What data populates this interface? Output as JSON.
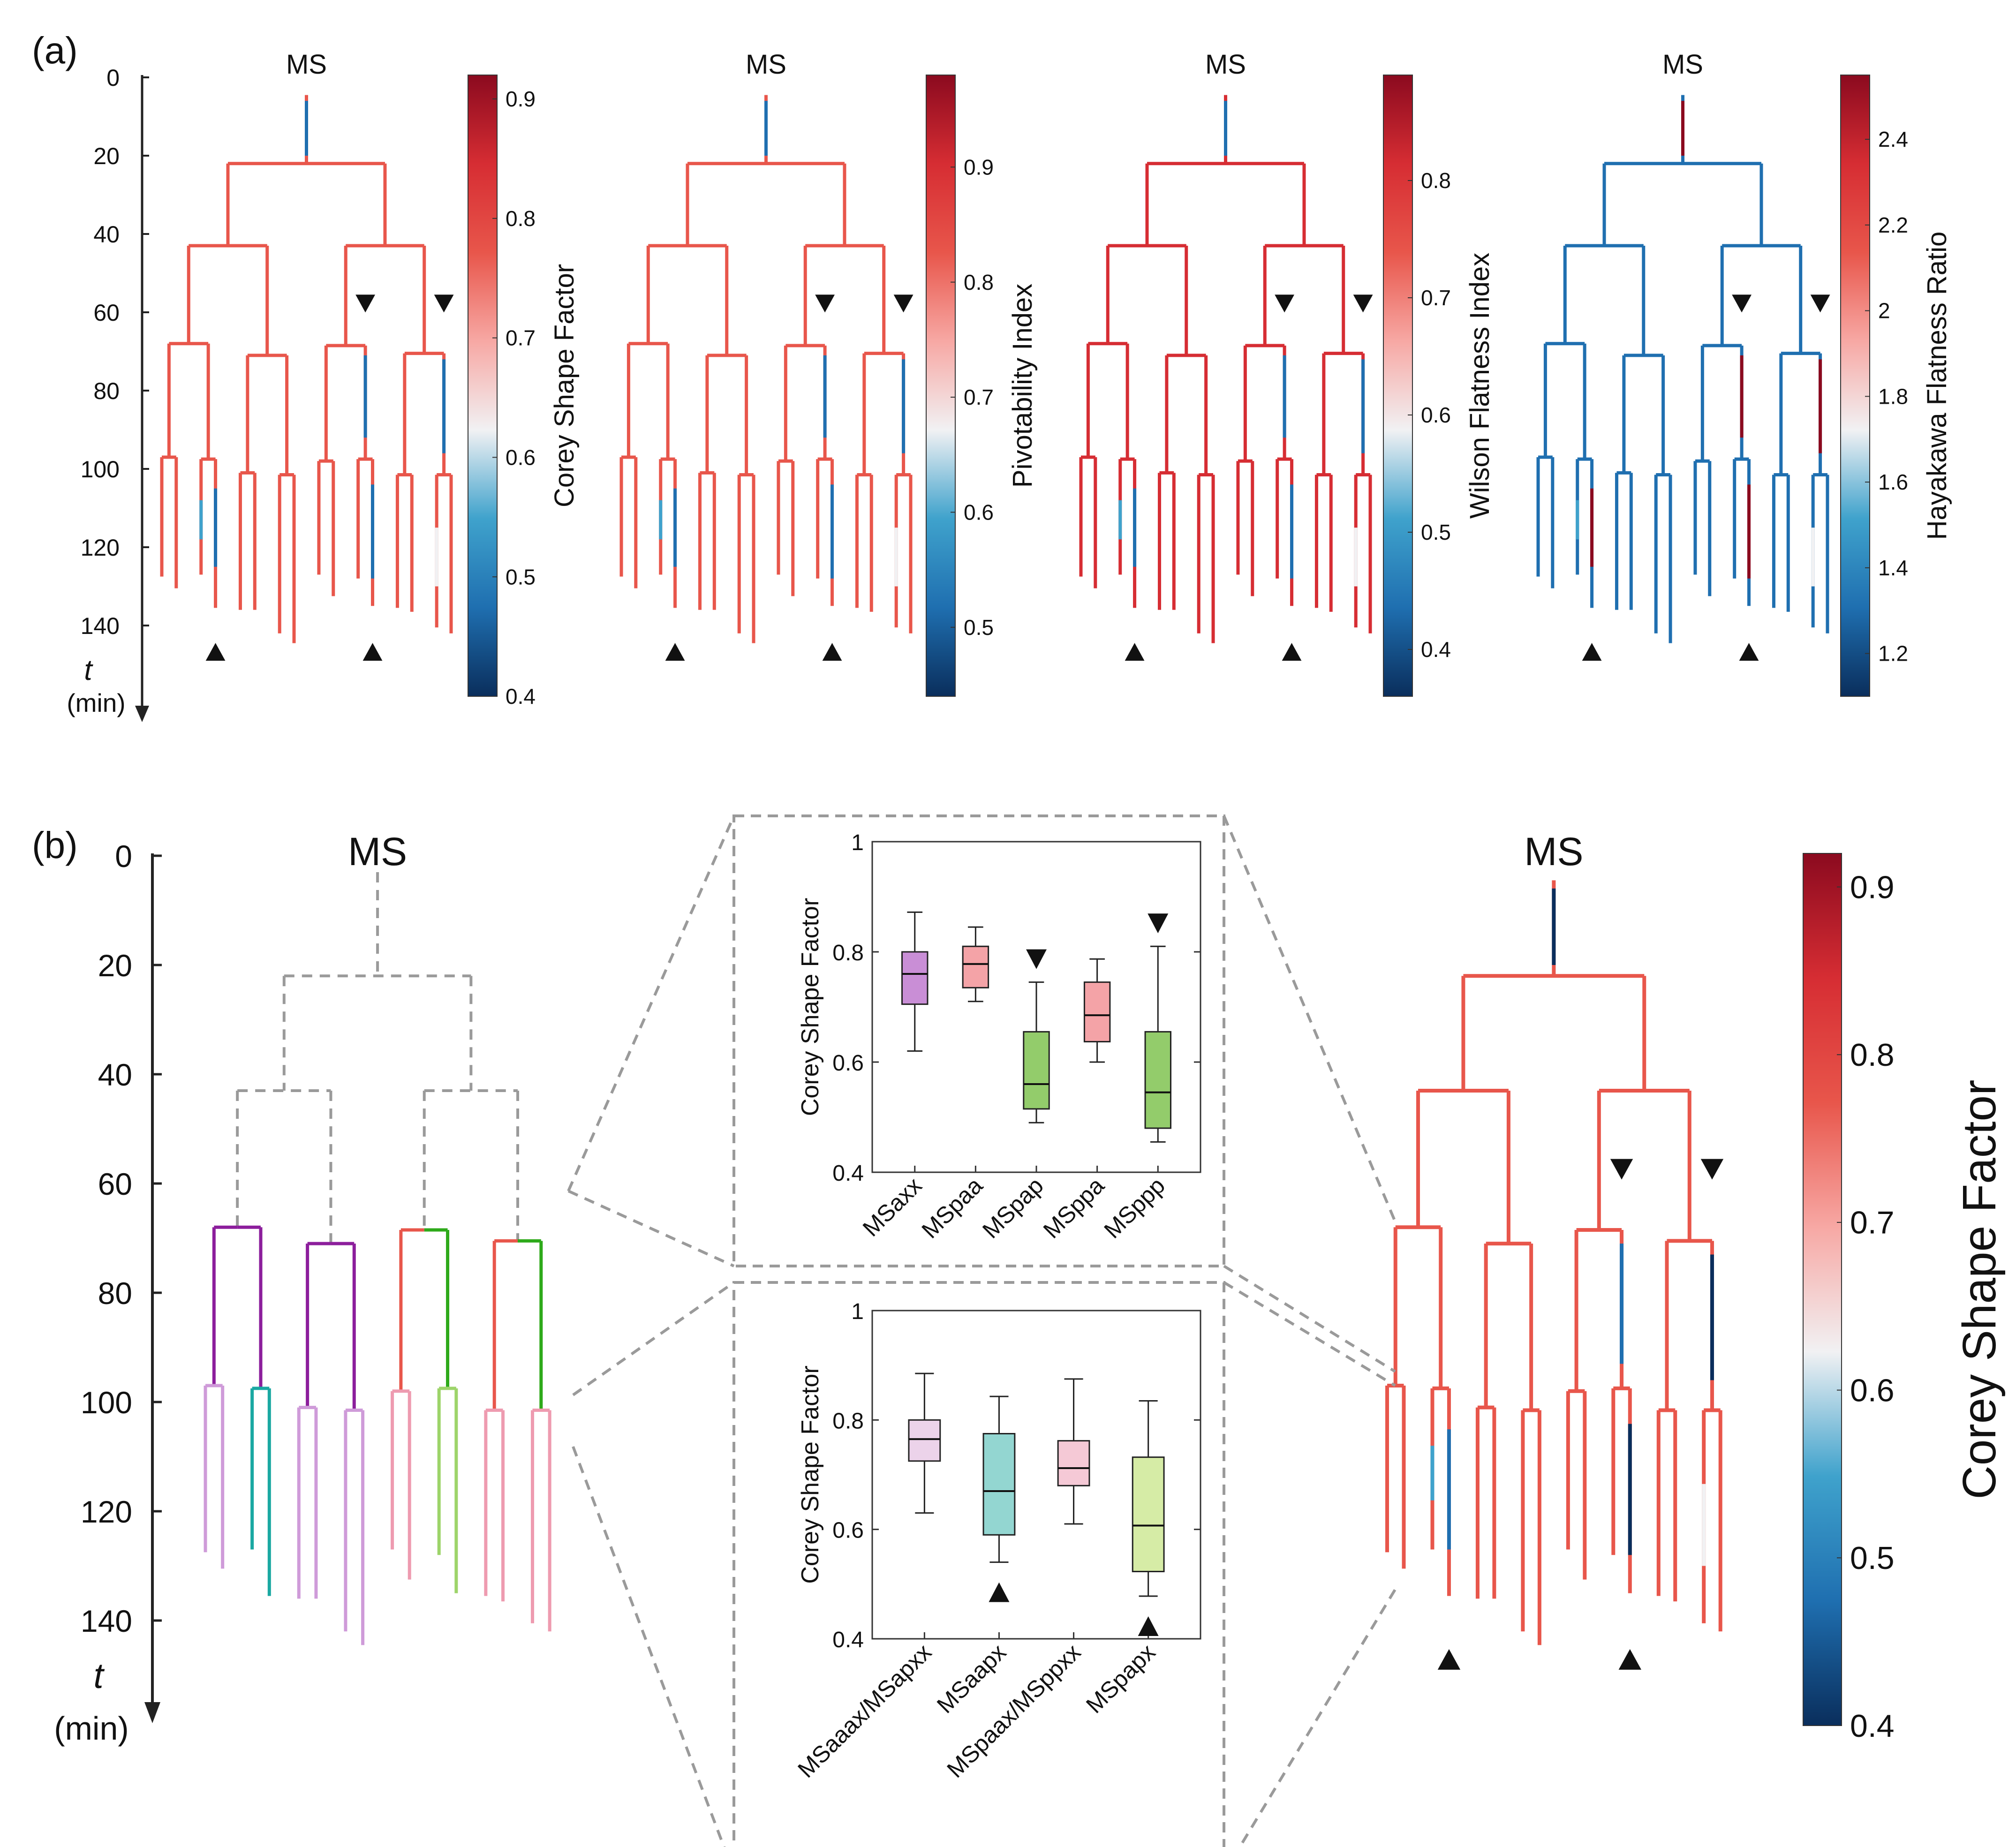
{
  "figure": {
    "panel_a_label": "(a)",
    "panel_b_label": "(b)",
    "lineage_root": "MS",
    "time_axis_symbol": "t",
    "time_axis_unit": "(min)",
    "time_ticks": [
      0,
      20,
      40,
      60,
      80,
      100,
      120,
      140
    ]
  },
  "colors": {
    "colormap": [
      "#0a2e5c",
      "#1f6fb0",
      "#3fa2cc",
      "#f1f1f3",
      "#f7a8a4",
      "#e8564b",
      "#d62d33",
      "#8b0a1f"
    ],
    "arrow": "#111111",
    "dashed": "#9a9a9a",
    "group_axx": "#8c1e9c",
    "group_axx_light": "#cf9bd9",
    "group_apx": "#1aa8a2",
    "group_paa": "#e8564b",
    "group_pap": "#2eaa1a",
    "group_pap_light": "#9dd46a",
    "group_pxx_light": "#ee9bb0",
    "box_axx": "#c98ed6",
    "box_paa": "#f4a3a7",
    "box_pap": "#93cc6b",
    "box_ppa": "#f4a3a7",
    "box_ppp": "#93cc6b",
    "box_aaax": "#ecd3ea",
    "box_aapx": "#93d6d1",
    "box_paax": "#f5c9d6",
    "box_papx": "#d6eca6"
  },
  "colorbars": [
    {
      "label": "Corey Shape Factor",
      "ticks": [
        0.4,
        0.5,
        0.6,
        0.7,
        0.8,
        0.9
      ],
      "range": [
        0.4,
        0.92
      ]
    },
    {
      "label": "Pivotability Index",
      "ticks": [
        0.5,
        0.6,
        0.7,
        0.8,
        0.9
      ],
      "range": [
        0.44,
        0.98
      ]
    },
    {
      "label": "Wilson Flatness Index",
      "ticks": [
        0.4,
        0.5,
        0.6,
        0.7,
        0.8
      ],
      "range": [
        0.36,
        0.89
      ]
    },
    {
      "label": "Hayakawa Flatness Ratio",
      "ticks": [
        1.2,
        1.4,
        1.6,
        1.8,
        2,
        2.2,
        2.4
      ],
      "range": [
        1.1,
        2.55
      ]
    }
  ],
  "colorbar_b": {
    "label": "Corey Shape Factor",
    "ticks": [
      0.4,
      0.5,
      0.6,
      0.7,
      0.8,
      0.9
    ],
    "range": [
      0.4,
      0.92
    ]
  },
  "tree": {
    "root_end": 22,
    "l2": [
      43,
      43
    ],
    "l3": [
      68,
      71,
      68.5,
      70.5
    ],
    "l4": [
      97,
      97.5,
      101,
      101.5,
      98,
      97.5,
      101.5,
      101.5
    ],
    "leaf_end": [
      127.5,
      130.5,
      127,
      135.5,
      136,
      136,
      142,
      144.5,
      127,
      132.5,
      128,
      135,
      135.5,
      136.5,
      140.5,
      142
    ]
  },
  "chart_data": [
    {
      "type": "box",
      "title": "",
      "ylabel": "Corey Shape Factor",
      "ylim": [
        0.4,
        1
      ],
      "yticks": [
        0.4,
        0.6,
        0.8,
        1
      ],
      "categories": [
        "MSaxx",
        "MSpaa",
        "MSpap",
        "MSppa",
        "MSppp"
      ],
      "series": [
        {
          "name": "MSaxx",
          "whisker_low": 0.62,
          "q1": 0.705,
          "median": 0.76,
          "q3": 0.8,
          "whisker_high": 0.872
        },
        {
          "name": "MSpaa",
          "whisker_low": 0.71,
          "q1": 0.735,
          "median": 0.778,
          "q3": 0.81,
          "whisker_high": 0.845
        },
        {
          "name": "MSpap",
          "whisker_low": 0.49,
          "q1": 0.515,
          "median": 0.56,
          "q3": 0.655,
          "whisker_high": 0.745
        },
        {
          "name": "MSppa",
          "whisker_low": 0.6,
          "q1": 0.637,
          "median": 0.685,
          "q3": 0.745,
          "whisker_high": 0.787
        },
        {
          "name": "MSppp",
          "whisker_low": 0.455,
          "q1": 0.48,
          "median": 0.545,
          "q3": 0.655,
          "whisker_high": 0.81
        }
      ],
      "arrows_down": [
        "MSpap",
        "MSppp"
      ]
    },
    {
      "type": "box",
      "title": "",
      "ylabel": "Corey Shape Factor",
      "ylim": [
        0.4,
        1
      ],
      "yticks": [
        0.4,
        0.6,
        0.8,
        1
      ],
      "categories": [
        "MSaaax/MSapxx",
        "MSaapx",
        "MSpaax/MSppxx",
        "MSpapx"
      ],
      "series": [
        {
          "name": "MSaaax/MSapxx",
          "whisker_low": 0.63,
          "q1": 0.725,
          "median": 0.765,
          "q3": 0.8,
          "whisker_high": 0.885
        },
        {
          "name": "MSaapx",
          "whisker_low": 0.54,
          "q1": 0.59,
          "median": 0.67,
          "q3": 0.775,
          "whisker_high": 0.843
        },
        {
          "name": "MSpaax/MSppxx",
          "whisker_low": 0.61,
          "q1": 0.68,
          "median": 0.712,
          "q3": 0.762,
          "whisker_high": 0.875
        },
        {
          "name": "MSpapx",
          "whisker_low": 0.478,
          "q1": 0.523,
          "median": 0.607,
          "q3": 0.732,
          "whisker_high": 0.835
        }
      ],
      "arrows_up": [
        "MSaapx",
        "MSpapx"
      ]
    }
  ]
}
